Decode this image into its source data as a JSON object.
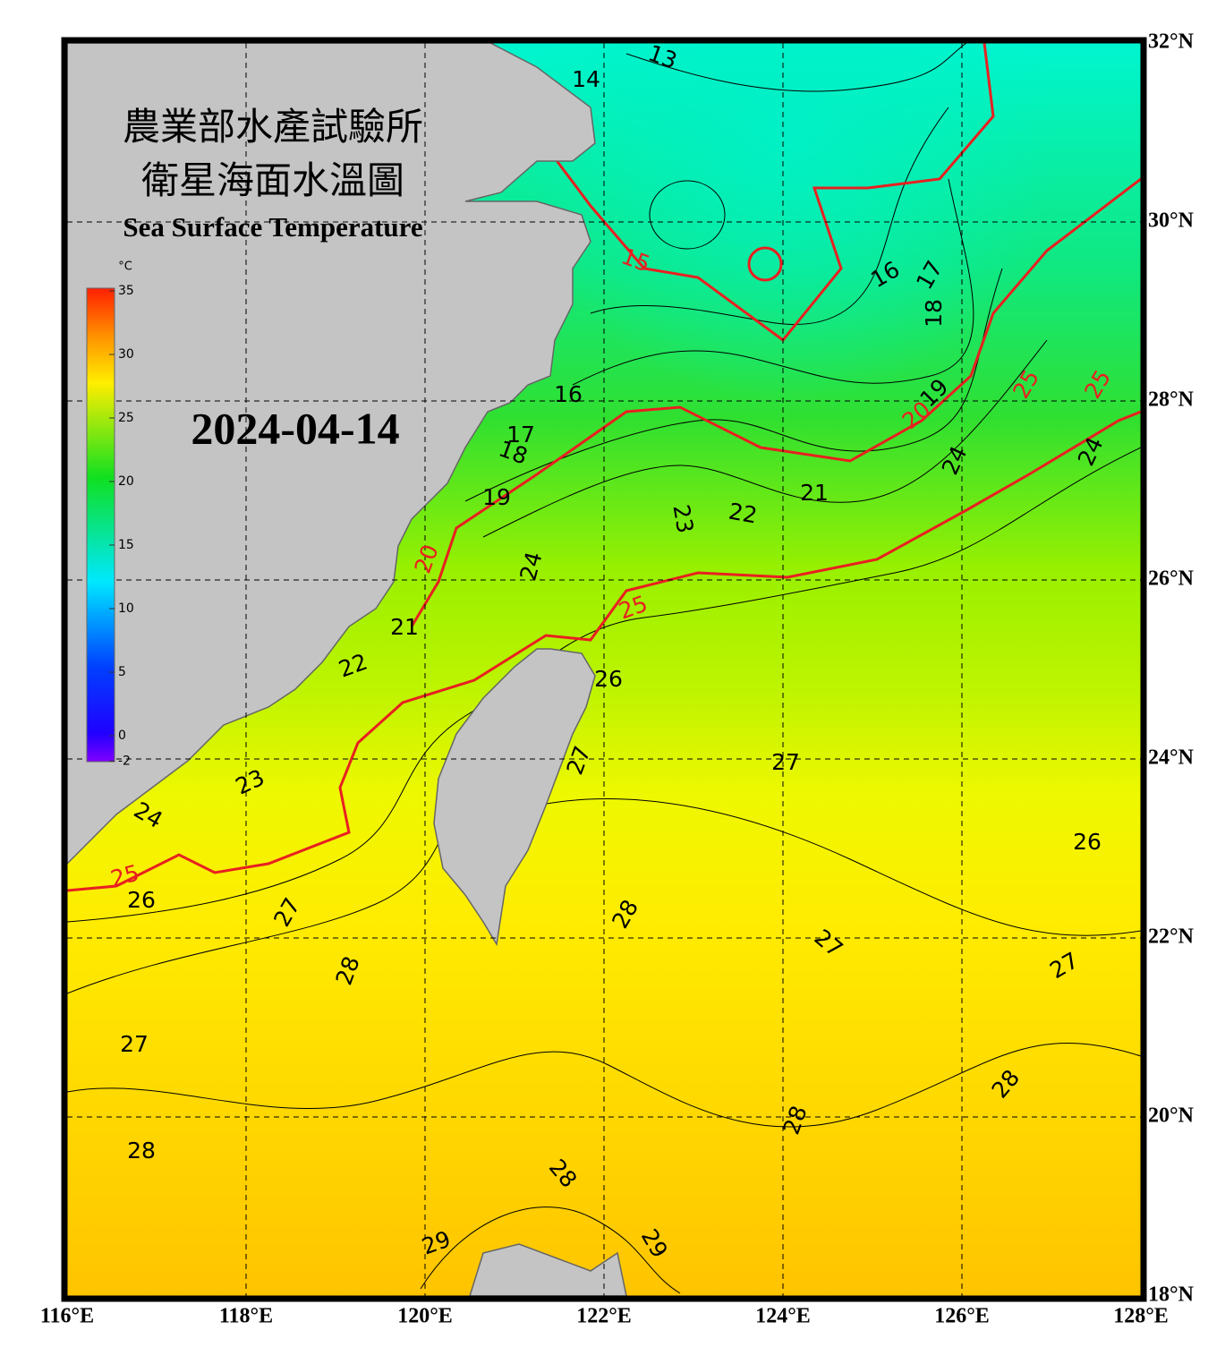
{
  "map": {
    "title_zh_1": "農業部水產試驗所",
    "title_zh_2": "衛星海面水溫圖",
    "title_en": "Sea Surface Temperature",
    "date": "2024-04-14",
    "colorbar": {
      "unit": "°C",
      "ticks": [
        35,
        30,
        25,
        20,
        15,
        10,
        5,
        0,
        -2
      ]
    },
    "lon_ticks": [
      {
        "value": 116,
        "label": "116°E"
      },
      {
        "value": 118,
        "label": "118°E"
      },
      {
        "value": 120,
        "label": "120°E"
      },
      {
        "value": 122,
        "label": "122°E"
      },
      {
        "value": 124,
        "label": "124°E"
      },
      {
        "value": 126,
        "label": "126°E"
      },
      {
        "value": 128,
        "label": "128°E"
      }
    ],
    "lat_ticks": [
      {
        "value": 32,
        "label": "32°N"
      },
      {
        "value": 30,
        "label": "30°N"
      },
      {
        "value": 28,
        "label": "28°N"
      },
      {
        "value": 26,
        "label": "26°N"
      },
      {
        "value": 24,
        "label": "24°N"
      },
      {
        "value": 22,
        "label": "22°N"
      },
      {
        "value": 20,
        "label": "20°N"
      },
      {
        "value": 18,
        "label": "18°N"
      }
    ],
    "contour_labels": [
      "13",
      "14",
      "15",
      "16",
      "17",
      "18",
      "16",
      "17",
      "18",
      "19",
      "19",
      "20",
      "20",
      "21",
      "22",
      "23",
      "24",
      "24",
      "24",
      "25",
      "25",
      "25",
      "25",
      "21",
      "22",
      "23",
      "24",
      "26",
      "26",
      "26",
      "27",
      "27",
      "27",
      "27",
      "27",
      "27",
      "28",
      "28",
      "28",
      "28",
      "28",
      "28",
      "29",
      "29"
    ]
  }
}
